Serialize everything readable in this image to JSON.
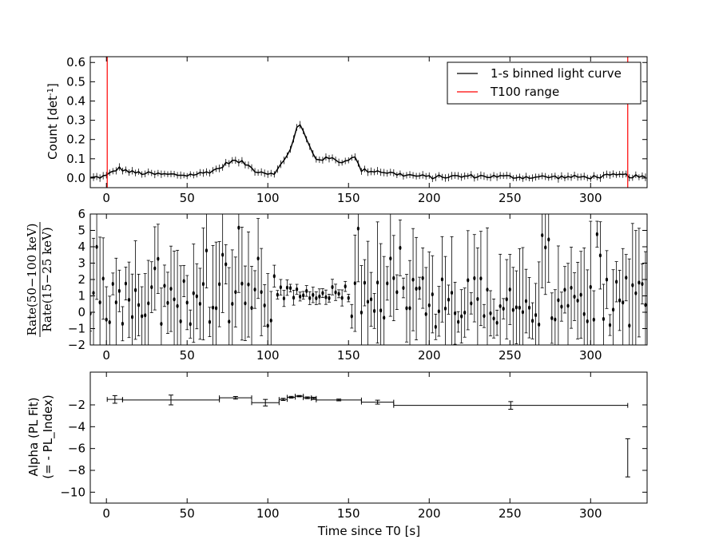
{
  "chart_data": [
    {
      "type": "line",
      "panel": "top",
      "ylabel_main": "Count [det",
      "ylabel_sup": "-1",
      "ylabel_end": "]",
      "xlim": [
        -10,
        335
      ],
      "ylim": [
        -0.05,
        0.63
      ],
      "xticks": [
        0,
        50,
        100,
        150,
        200,
        250,
        300
      ],
      "yticks": [
        0.0,
        0.1,
        0.2,
        0.3,
        0.4,
        0.5,
        0.6
      ],
      "ytick_labels": [
        "0.0",
        "0.1",
        "0.2",
        "0.3",
        "0.4",
        "0.5",
        "0.6"
      ],
      "legend": {
        "position": "top-right",
        "entries": [
          {
            "label": "1-s binned light curve",
            "color": "#000000"
          },
          {
            "label": "T100 range",
            "color": "#ff0000"
          }
        ]
      },
      "t100_range": [
        0.5,
        323
      ],
      "light_curve_profile": [
        [
          -10,
          0.0
        ],
        [
          0,
          0.01
        ],
        [
          5,
          0.04
        ],
        [
          8,
          0.05
        ],
        [
          15,
          0.03
        ],
        [
          30,
          0.02
        ],
        [
          50,
          0.015
        ],
        [
          60,
          0.025
        ],
        [
          70,
          0.05
        ],
        [
          77,
          0.09
        ],
        [
          85,
          0.08
        ],
        [
          92,
          0.04
        ],
        [
          100,
          0.025
        ],
        [
          105,
          0.03
        ],
        [
          110,
          0.09
        ],
        [
          115,
          0.17
        ],
        [
          119,
          0.29
        ],
        [
          122,
          0.24
        ],
        [
          126,
          0.16
        ],
        [
          130,
          0.1
        ],
        [
          140,
          0.1
        ],
        [
          147,
          0.08
        ],
        [
          153,
          0.12
        ],
        [
          158,
          0.04
        ],
        [
          170,
          0.035
        ],
        [
          180,
          0.02
        ],
        [
          200,
          0.005
        ],
        [
          230,
          0.01
        ],
        [
          260,
          0.005
        ],
        [
          300,
          0.005
        ],
        [
          320,
          0.015
        ],
        [
          335,
          0.0
        ]
      ],
      "light_curve_errors": 0.015,
      "time_step": 2
    },
    {
      "type": "scatter",
      "panel": "middle",
      "ylabel_num": "Rate(50−100 keV)",
      "ylabel_den": "Rate(15−25 keV)",
      "xlim": [
        -10,
        335
      ],
      "ylim": [
        -2,
        6
      ],
      "xticks": [
        0,
        50,
        100,
        150,
        200,
        250,
        300
      ],
      "yticks": [
        -2,
        -1,
        0,
        1,
        2,
        3,
        4,
        5,
        6
      ],
      "series": [
        {
          "x_range": [
            -10,
            335
          ],
          "step": 2,
          "baseline": 0.6,
          "quiet_region": [
            105,
            150
          ],
          "quiet_value": 1.2
        }
      ]
    },
    {
      "type": "scatter",
      "panel": "bottom",
      "ylabel_line1": "Alpha (PL Fit)",
      "ylabel_line2": "(= - PL_Index)",
      "xlabel": "Time since T0 [s]",
      "xlim": [
        -10,
        335
      ],
      "ylim": [
        -11,
        1
      ],
      "xticks": [
        0,
        50,
        100,
        150,
        200,
        250,
        300
      ],
      "yticks": [
        -10,
        -8,
        -6,
        -4,
        -2
      ],
      "segments": [
        {
          "x0": 0.5,
          "x1": 10,
          "y": -1.5,
          "err": 0.35
        },
        {
          "x0": 10,
          "x1": 70,
          "y": -1.55,
          "err": 0.45
        },
        {
          "x0": 70,
          "x1": 90,
          "y": -1.35,
          "err": 0.12
        },
        {
          "x0": 90,
          "x1": 107,
          "y": -1.8,
          "err": 0.3
        },
        {
          "x0": 107,
          "x1": 112,
          "y": -1.5,
          "err": 0.1
        },
        {
          "x0": 112,
          "x1": 117,
          "y": -1.3,
          "err": 0.08
        },
        {
          "x0": 117,
          "x1": 122,
          "y": -1.2,
          "err": 0.06
        },
        {
          "x0": 122,
          "x1": 127,
          "y": -1.35,
          "err": 0.08
        },
        {
          "x0": 127,
          "x1": 130,
          "y": -1.4,
          "err": 0.1
        },
        {
          "x0": 130,
          "x1": 158,
          "y": -1.55,
          "err": 0.08
        },
        {
          "x0": 158,
          "x1": 178,
          "y": -1.75,
          "err": 0.18
        },
        {
          "x0": 178,
          "x1": 323,
          "y": -2.05,
          "err": 0.35
        }
      ],
      "lone_point": {
        "x": 323,
        "y_low": -8.6,
        "y_high": -5.1
      }
    }
  ]
}
